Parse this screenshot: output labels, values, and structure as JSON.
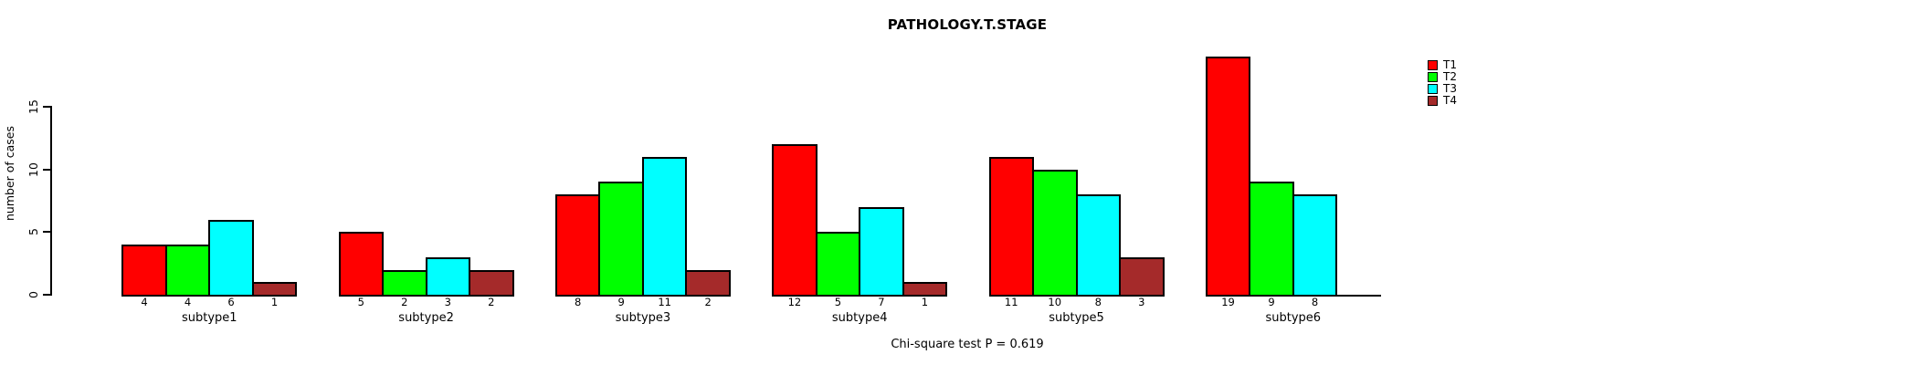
{
  "page": {
    "background_color": "#FFFFFF",
    "text_color": "#000000"
  },
  "chart_data": {
    "type": "bar",
    "title": "PATHOLOGY.T.STAGE",
    "xlabel": "",
    "ylabel": "number of cases",
    "footer": "Chi-square test P = 0.619",
    "grid": false,
    "legend_position": "right",
    "axis_color": "#000000",
    "bar_border_color": "#000000",
    "yticks": [
      0,
      5,
      10,
      15
    ],
    "ylim": [
      0,
      20
    ],
    "categories": [
      "subtype1",
      "subtype2",
      "subtype3",
      "subtype4",
      "subtype5",
      "subtype6"
    ],
    "series": [
      {
        "name": "T1",
        "color": "#FF0000",
        "values": [
          4,
          5,
          8,
          12,
          11,
          19
        ]
      },
      {
        "name": "T2",
        "color": "#00FF00",
        "values": [
          4,
          2,
          9,
          5,
          10,
          9
        ]
      },
      {
        "name": "T3",
        "color": "#00FFFF",
        "values": [
          6,
          3,
          11,
          7,
          8,
          8
        ]
      },
      {
        "name": "T4",
        "color": "#A52A2A",
        "values": [
          1,
          2,
          2,
          1,
          3,
          0
        ]
      }
    ],
    "bar_value_labels": [
      [
        "4",
        "4",
        "6",
        "1"
      ],
      [
        "5",
        "2",
        "3",
        "2"
      ],
      [
        "8",
        "9",
        "11",
        "2"
      ],
      [
        "12",
        "5",
        "7",
        "1"
      ],
      [
        "11",
        "10",
        "8",
        "3"
      ],
      [
        "19",
        "9",
        "8",
        ""
      ]
    ]
  }
}
